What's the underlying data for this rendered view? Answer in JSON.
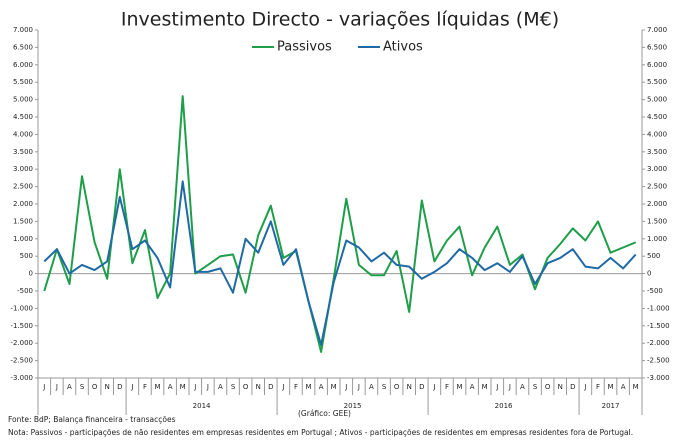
{
  "chart_data": {
    "type": "line",
    "title": "Investimento Directo - variações líquidas (M€)",
    "categories": [
      "J",
      "J",
      "A",
      "S",
      "O",
      "N",
      "D",
      "J",
      "F",
      "M",
      "A",
      "M",
      "J",
      "J",
      "A",
      "S",
      "O",
      "N",
      "D",
      "J",
      "F",
      "M",
      "A",
      "M",
      "J",
      "J",
      "A",
      "S",
      "O",
      "N",
      "D",
      "J",
      "F",
      "M",
      "A",
      "M",
      "J",
      "J",
      "A",
      "S",
      "O",
      "N",
      "D",
      "J",
      "F",
      "M",
      "A",
      "M"
    ],
    "year_labels": [
      null,
      "2014",
      "2015",
      "2016",
      "2017"
    ],
    "series": [
      {
        "name": "Passivos",
        "color": "#1f9e4a",
        "values": [
          -500,
          700,
          -300,
          2800,
          900,
          -150,
          3000,
          300,
          1250,
          -700,
          0,
          5100,
          0,
          250,
          500,
          550,
          -550,
          1100,
          1950,
          450,
          650,
          -800,
          -2250,
          -150,
          2150,
          250,
          -50,
          -50,
          650,
          -1100,
          2100,
          350,
          950,
          1350,
          -50,
          750,
          1350,
          250,
          550,
          -450,
          450,
          850,
          1300,
          950,
          1500,
          600,
          750,
          900
        ]
      },
      {
        "name": "Ativos",
        "color": "#1f6aa5",
        "values": [
          350,
          700,
          0,
          250,
          100,
          350,
          2200,
          700,
          950,
          450,
          -400,
          2650,
          50,
          50,
          150,
          -550,
          1000,
          600,
          1500,
          250,
          700,
          -800,
          -2050,
          -250,
          950,
          750,
          350,
          600,
          250,
          200,
          -150,
          50,
          300,
          700,
          450,
          100,
          300,
          50,
          500,
          -300,
          300,
          450,
          700,
          200,
          150,
          450,
          150,
          550
        ]
      }
    ],
    "ylim": [
      -3000,
      7000
    ],
    "yticks": [
      {
        "value": -3000,
        "label": "-3.000"
      },
      {
        "value": -2500,
        "label": "-2.500"
      },
      {
        "value": -2000,
        "label": "-2.000"
      },
      {
        "value": -1500,
        "label": "-1.500"
      },
      {
        "value": -1000,
        "label": "-1.000"
      },
      -500,
      0,
      500,
      {
        "value": 1000,
        "label": "1.000"
      },
      {
        "value": 1500,
        "label": "1.500"
      },
      {
        "value": 2000,
        "label": "2.000"
      },
      {
        "value": 2500,
        "label": "2.500"
      },
      {
        "value": 3000,
        "label": "3.000"
      },
      {
        "value": 3500,
        "label": "3.500"
      },
      {
        "value": 4000,
        "label": "4.000"
      },
      {
        "value": 4500,
        "label": "4.500"
      },
      {
        "value": 5000,
        "label": "5.000"
      },
      {
        "value": 5500,
        "label": "5.500"
      },
      {
        "value": 6000,
        "label": "6.000"
      },
      {
        "value": 6500,
        "label": "6.500"
      },
      {
        "value": 7000,
        "label": "7.000"
      }
    ],
    "y2lim": [
      -3000,
      7000
    ],
    "y2ticks": [
      {
        "value": -3000,
        "label": "-3.000"
      },
      {
        "value": -2500,
        "label": "-2.500"
      },
      {
        "value": -2000,
        "label": "-2.000"
      },
      {
        "value": -1500,
        "label": "-1.500"
      },
      {
        "value": -1000,
        "label": "-1.000"
      },
      -500,
      0,
      500,
      {
        "value": 1000,
        "label": "1.000"
      },
      {
        "value": 1500,
        "label": "1.500"
      },
      {
        "value": 2000,
        "label": "2.000"
      },
      {
        "value": 2500,
        "label": "2.500"
      },
      {
        "value": 3000,
        "label": "3.000"
      },
      {
        "value": 3500,
        "label": "3.500"
      },
      {
        "value": 4000,
        "label": "4.000"
      },
      {
        "value": 4500,
        "label": "4.500"
      },
      {
        "value": 5000,
        "label": "5.000"
      },
      {
        "value": 5500,
        "label": "5.500"
      },
      {
        "value": 6000,
        "label": "6.000"
      },
      {
        "value": 6500,
        "label": "6.500"
      },
      {
        "value": 7000,
        "label": "7.000"
      }
    ],
    "legend": "top",
    "grid": false,
    "source": "Fonte: BdP; Balança financeira - transacções",
    "credit": "(Gráfico: GEE)",
    "note": "Nota: Passivos - participações de não residentes em empresas residentes em Portugal ; Ativos - participações de residentes em empresas residentes fora de Portugal."
  }
}
